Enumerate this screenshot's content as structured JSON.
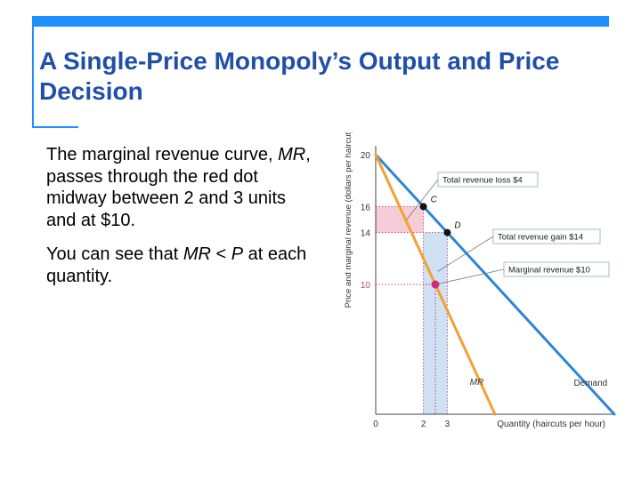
{
  "slide": {
    "title": "A Single-Price Monopoly’s Output and Price Decision",
    "accent_color": "#1e90ff",
    "title_color": "#1f4fa8",
    "bullets": [
      {
        "parts": [
          {
            "text": "The marginal revenue curve, ",
            "italic": false
          },
          {
            "text": "MR",
            "italic": true
          },
          {
            "text": ", passes through the red dot midway between 2 and 3 units and at $10.",
            "italic": false
          }
        ]
      },
      {
        "parts": [
          {
            "text": "You can see that ",
            "italic": false
          },
          {
            "text": "MR",
            "italic": true
          },
          {
            "text": " < ",
            "italic": false
          },
          {
            "text": "P",
            "italic": true
          },
          {
            "text": " at each quantity.",
            "italic": false
          }
        ]
      }
    ]
  },
  "chart_data": {
    "type": "line",
    "ylabel": "Price and marginal revenue (dollars per haircut)",
    "xlabel": "Quantity (haircuts per hour)",
    "xlim": [
      0,
      10
    ],
    "ylim": [
      0,
      20
    ],
    "x_ticks": [
      "0",
      "2",
      "3"
    ],
    "y_ticks": [
      "10",
      "14",
      "16",
      "20"
    ],
    "series": [
      {
        "name": "Demand",
        "color": "#2a86d6",
        "points": [
          [
            0,
            20
          ],
          [
            10,
            0
          ]
        ]
      },
      {
        "name": "MR",
        "color": "#f5a030",
        "points": [
          [
            0,
            20
          ],
          [
            5,
            0
          ]
        ]
      }
    ],
    "points": [
      {
        "label": "C",
        "x": 2,
        "y": 16,
        "color": "#111111"
      },
      {
        "label": "D",
        "x": 3,
        "y": 14,
        "color": "#111111"
      },
      {
        "label": "",
        "x": 2.5,
        "y": 10,
        "color": "#d6267a"
      }
    ],
    "shaded_regions": [
      {
        "name": "Total revenue loss",
        "x": [
          0,
          2
        ],
        "y": [
          14,
          16
        ],
        "color": "#f6cdd6"
      },
      {
        "name": "Total revenue gain",
        "x": [
          2,
          3
        ],
        "y": [
          0,
          14
        ],
        "color": "#cfe2f3"
      }
    ],
    "annotations": [
      {
        "text": "Total revenue loss $4",
        "target_x": 1.3,
        "target_y": 15
      },
      {
        "text": "Total revenue gain $14",
        "target_x": 2.6,
        "target_y": 11
      },
      {
        "text": "Marginal revenue $10",
        "target_x": 2.5,
        "target_y": 10
      }
    ],
    "curve_labels": [
      "MR",
      "Demand"
    ]
  }
}
